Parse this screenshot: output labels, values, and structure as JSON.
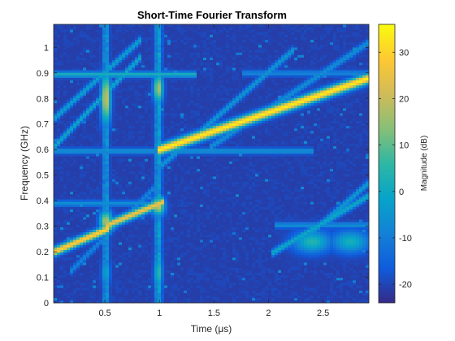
{
  "chart_data": {
    "type": "heatmap",
    "title": "Short-Time Fourier Transform",
    "xlabel": "Time (μs)",
    "ylabel": "Frequency (GHz)",
    "xlim": [
      0.03,
      2.92
    ],
    "ylim": [
      0,
      1.09
    ],
    "xticks": [
      0.5,
      1,
      1.5,
      2,
      2.5
    ],
    "xtick_labels": [
      "0.5",
      "1",
      "1.5",
      "2",
      "2.5"
    ],
    "yticks": [
      0,
      0.1,
      0.2,
      0.3,
      0.4,
      0.5,
      0.6,
      0.7,
      0.8,
      0.9,
      1
    ],
    "ytick_labels": [
      "0",
      "0.1",
      "0.2",
      "0.3",
      "0.4",
      "0.5",
      "0.6",
      "0.7",
      "0.8",
      "0.9",
      "1"
    ],
    "colorbar": {
      "label": "Magnitude (dB)",
      "range": [
        -24,
        36
      ],
      "ticks": [
        -20,
        -10,
        0,
        10,
        20,
        30
      ],
      "tick_labels": [
        "-20",
        "-10",
        "0",
        "10",
        "20",
        "30"
      ],
      "colormap": "parula",
      "colors": [
        "#352a87",
        "#0f5cdd",
        "#1481d6",
        "#06a4ca",
        "#2eb7a4",
        "#87bf77",
        "#d1bb59",
        "#fec832",
        "#f9fb0e"
      ]
    },
    "floor_db": -21,
    "features": [
      {
        "kind": "chirp",
        "t": [
          0.03,
          0.5
        ],
        "f": [
          0.2,
          0.285
        ],
        "peak_db": 30,
        "width_ghz": 0.012
      },
      {
        "kind": "chirp",
        "t": [
          0.5,
          0.55
        ],
        "f": [
          0.285,
          0.3
        ],
        "peak_db": 14,
        "width_ghz": 0.012
      },
      {
        "kind": "chirp",
        "t": [
          0.55,
          1.0
        ],
        "f": [
          0.31,
          0.39
        ],
        "peak_db": 26,
        "width_ghz": 0.012
      },
      {
        "kind": "chirp",
        "t": [
          1.0,
          2.92
        ],
        "f": [
          0.6,
          0.88
        ],
        "peak_db": 34,
        "width_ghz": 0.014
      },
      {
        "kind": "chirp",
        "t": [
          0.03,
          0.8
        ],
        "f": [
          0.61,
          0.95
        ],
        "peak_db": 0,
        "width_ghz": 0.01
      },
      {
        "kind": "chirp",
        "t": [
          0.03,
          0.8
        ],
        "f": [
          0.72,
          1.02
        ],
        "peak_db": -2,
        "width_ghz": 0.01
      },
      {
        "kind": "chirp",
        "t": [
          1.05,
          2.2
        ],
        "f": [
          0.55,
          0.98
        ],
        "peak_db": -4,
        "width_ghz": 0.01
      },
      {
        "kind": "chirp",
        "t": [
          1.5,
          2.92
        ],
        "f": [
          0.62,
          1.02
        ],
        "peak_db": -6,
        "width_ghz": 0.01
      },
      {
        "kind": "chirp",
        "t": [
          2.05,
          2.92
        ],
        "f": [
          0.2,
          0.42
        ],
        "peak_db": 0,
        "width_ghz": 0.01
      },
      {
        "kind": "chirp",
        "t": [
          2.35,
          2.92
        ],
        "f": [
          0.26,
          0.47
        ],
        "peak_db": -3,
        "width_ghz": 0.01
      },
      {
        "kind": "chirp",
        "t": [
          0.2,
          0.95
        ],
        "f": [
          0.13,
          0.45
        ],
        "peak_db": -8,
        "width_ghz": 0.01
      },
      {
        "kind": "hline",
        "t": [
          0.03,
          1.35
        ],
        "f": 0.895,
        "peak_db": 2,
        "width_ghz": 0.008
      },
      {
        "kind": "hline",
        "t": [
          0.03,
          2.4
        ],
        "f": 0.595,
        "peak_db": -5,
        "width_ghz": 0.008
      },
      {
        "kind": "hline",
        "t": [
          1.75,
          2.92
        ],
        "f": 0.9,
        "peak_db": -8,
        "width_ghz": 0.008
      },
      {
        "kind": "hline",
        "t": [
          0.03,
          0.9
        ],
        "f": 0.39,
        "peak_db": -6,
        "width_ghz": 0.008
      },
      {
        "kind": "hline",
        "t": [
          2.05,
          2.92
        ],
        "f": 0.305,
        "peak_db": -6,
        "width_ghz": 0.008
      },
      {
        "kind": "vline",
        "t": 0.51,
        "f": [
          0.0,
          1.09
        ],
        "peak_db": 0,
        "width_us": 0.02
      },
      {
        "kind": "vline",
        "t": 0.99,
        "f": [
          0.0,
          1.09
        ],
        "peak_db": 2,
        "width_us": 0.022
      },
      {
        "kind": "blob",
        "t": 0.51,
        "f": 0.8,
        "peak_db": 22,
        "rt": 0.03,
        "rf": 0.07
      },
      {
        "kind": "blob",
        "t": 0.51,
        "f": 0.32,
        "peak_db": 18,
        "rt": 0.04,
        "rf": 0.03
      },
      {
        "kind": "blob",
        "t": 0.99,
        "f": 0.84,
        "peak_db": 18,
        "rt": 0.03,
        "rf": 0.04
      },
      {
        "kind": "blob",
        "t": 0.99,
        "f": 0.38,
        "peak_db": 22,
        "rt": 0.04,
        "rf": 0.025
      },
      {
        "kind": "blob",
        "t": 0.99,
        "f": 0.12,
        "peak_db": 6,
        "rt": 0.025,
        "rf": 0.05
      },
      {
        "kind": "blob",
        "t": 0.51,
        "f": 0.12,
        "peak_db": 0,
        "rt": 0.025,
        "rf": 0.04
      },
      {
        "kind": "blob",
        "t": 2.4,
        "f": 0.24,
        "peak_db": 4,
        "rt": 0.12,
        "rf": 0.03
      },
      {
        "kind": "blob",
        "t": 2.75,
        "f": 0.24,
        "peak_db": 2,
        "rt": 0.12,
        "rf": 0.03
      }
    ]
  }
}
